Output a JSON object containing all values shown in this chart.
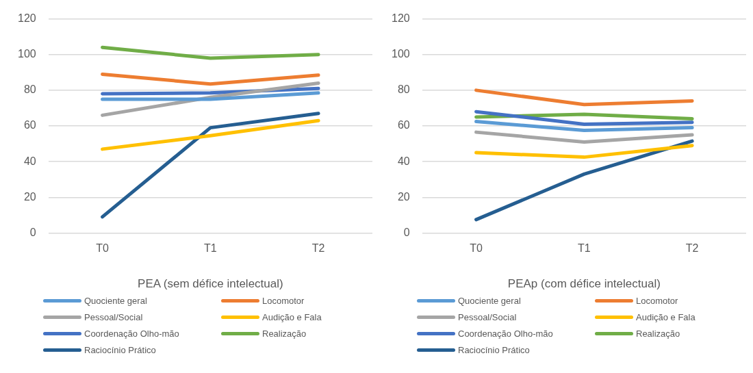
{
  "chart_data": [
    {
      "type": "line",
      "xlabel": "PEA (sem défice intelectual)",
      "categories": [
        "T0",
        "T1",
        "T2"
      ],
      "ylim": [
        0,
        120
      ],
      "yticks": [
        0,
        20,
        40,
        60,
        80,
        100,
        120
      ],
      "grid": "y",
      "legend": "bottom",
      "marker": "none",
      "series": [
        {
          "name": "Quociente geral",
          "color": "#5b9bd5",
          "values": [
            75,
            75,
            78.5
          ]
        },
        {
          "name": "Locomotor",
          "color": "#ed7d31",
          "values": [
            89,
            83.5,
            88.5
          ]
        },
        {
          "name": "Pessoal/Social",
          "color": "#a5a5a5",
          "values": [
            66,
            76,
            84
          ]
        },
        {
          "name": "Audição e Fala",
          "color": "#ffc000",
          "values": [
            47,
            54.5,
            63
          ]
        },
        {
          "name": "Coordenação Olho-mão",
          "color": "#4472c4",
          "values": [
            78,
            78.5,
            81
          ]
        },
        {
          "name": "Realização",
          "color": "#70ad47",
          "values": [
            104,
            98,
            100
          ]
        },
        {
          "name": "Raciocínio Prático",
          "color": "#255e91",
          "values": [
            9,
            59,
            67
          ]
        }
      ]
    },
    {
      "type": "line",
      "xlabel": "PEAp (com défice intelectual)",
      "categories": [
        "T0",
        "T1",
        "T2"
      ],
      "ylim": [
        0,
        120
      ],
      "yticks": [
        0,
        20,
        40,
        60,
        80,
        100,
        120
      ],
      "grid": "y",
      "legend": "bottom",
      "marker": "none",
      "series": [
        {
          "name": "Quociente geral",
          "color": "#5b9bd5",
          "values": [
            62.5,
            57.5,
            59
          ]
        },
        {
          "name": "Locomotor",
          "color": "#ed7d31",
          "values": [
            80,
            72,
            74
          ]
        },
        {
          "name": "Pessoal/Social",
          "color": "#a5a5a5",
          "values": [
            56.5,
            51,
            55
          ]
        },
        {
          "name": "Audição e Fala",
          "color": "#ffc000",
          "values": [
            45,
            42.5,
            49
          ]
        },
        {
          "name": "Coordenação Olho-mão",
          "color": "#4472c4",
          "values": [
            68,
            61,
            62
          ]
        },
        {
          "name": "Realização",
          "color": "#70ad47",
          "values": [
            65,
            66.5,
            64
          ]
        },
        {
          "name": "Raciocínio Prático",
          "color": "#255e91",
          "values": [
            7.5,
            33,
            51.5
          ]
        }
      ]
    }
  ]
}
